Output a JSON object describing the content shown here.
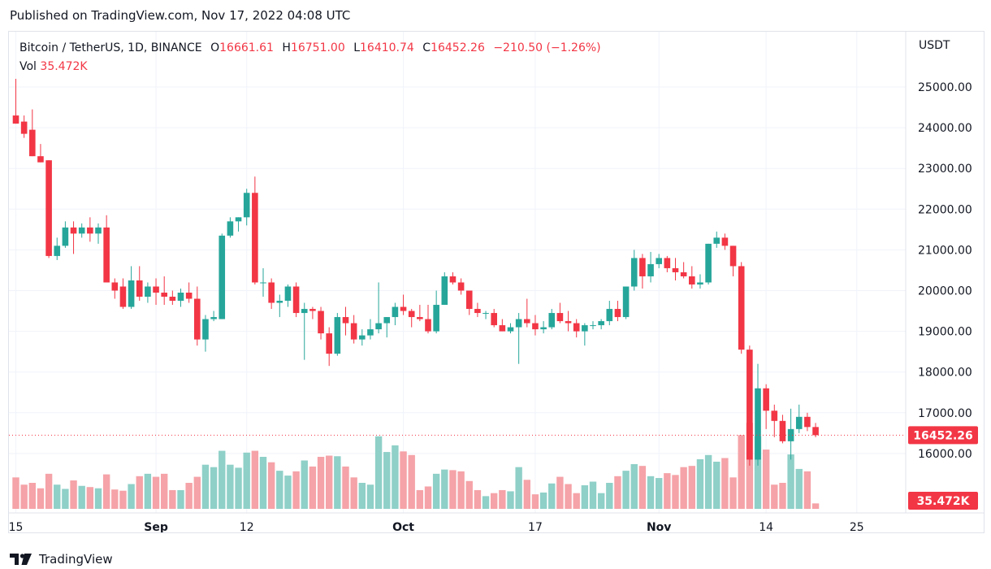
{
  "header": {
    "published": "Published on TradingView.com, Nov 17, 2022 04:08 UTC"
  },
  "legend": {
    "symbol": "Bitcoin / TetherUS, 1D, BINANCE",
    "open_label": "O",
    "open": "16661.61",
    "high_label": "H",
    "high": "16751.00",
    "low_label": "L",
    "low": "16410.74",
    "close_label": "C",
    "close": "16452.26",
    "change": "−210.50 (−1.26%)",
    "vol_label": "Vol",
    "vol": "35.472K"
  },
  "axis": {
    "unit": "USDT",
    "y_ticks": [
      "25000.00",
      "24000.00",
      "23000.00",
      "22000.00",
      "21000.00",
      "20000.00",
      "19000.00",
      "18000.00",
      "17000.00",
      "16000.00"
    ],
    "x_ticks": [
      {
        "label": "15",
        "index": 0
      },
      {
        "label": "Sep",
        "index": 17
      },
      {
        "label": "12",
        "index": 28
      },
      {
        "label": "Oct",
        "index": 47
      },
      {
        "label": "17",
        "index": 63
      },
      {
        "label": "Nov",
        "index": 78
      },
      {
        "label": "14",
        "index": 91
      },
      {
        "label": "25",
        "index": 102
      }
    ],
    "last_price_badge": "16452.26",
    "volume_badge": "35.472K"
  },
  "brand": {
    "name": "TradingView"
  },
  "colors": {
    "up": "#26a69a",
    "down": "#f23645",
    "up_vol": "#8fd0c8",
    "down_vol": "#f5a3a8",
    "grid": "#f0f3fa"
  },
  "chart_data": {
    "type": "candlestick",
    "title": "Bitcoin / TetherUS, 1D, BINANCE",
    "ylabel": "USDT",
    "ylim": [
      15400,
      25600
    ],
    "x_start": "Aug 15",
    "candles": [
      {
        "o": 24300,
        "h": 25200,
        "l": 24100,
        "c": 24100,
        "v": 0.52
      },
      {
        "o": 24150,
        "h": 24300,
        "l": 23750,
        "c": 23850,
        "v": 0.4
      },
      {
        "o": 23950,
        "h": 24450,
        "l": 23300,
        "c": 23300,
        "v": 0.43
      },
      {
        "o": 23300,
        "h": 23600,
        "l": 23150,
        "c": 23150,
        "v": 0.34
      },
      {
        "o": 23200,
        "h": 23200,
        "l": 20800,
        "c": 20850,
        "v": 0.58
      },
      {
        "o": 20850,
        "h": 21300,
        "l": 20750,
        "c": 21100,
        "v": 0.4
      },
      {
        "o": 21100,
        "h": 21700,
        "l": 21050,
        "c": 21550,
        "v": 0.33
      },
      {
        "o": 21550,
        "h": 21700,
        "l": 20900,
        "c": 21400,
        "v": 0.47
      },
      {
        "o": 21400,
        "h": 21650,
        "l": 21300,
        "c": 21550,
        "v": 0.38
      },
      {
        "o": 21550,
        "h": 21800,
        "l": 21200,
        "c": 21400,
        "v": 0.36
      },
      {
        "o": 21400,
        "h": 21650,
        "l": 21150,
        "c": 21550,
        "v": 0.34
      },
      {
        "o": 21550,
        "h": 21850,
        "l": 20200,
        "c": 20200,
        "v": 0.57
      },
      {
        "o": 20200,
        "h": 20300,
        "l": 19800,
        "c": 20000,
        "v": 0.32
      },
      {
        "o": 20100,
        "h": 20300,
        "l": 19550,
        "c": 19600,
        "v": 0.3
      },
      {
        "o": 19600,
        "h": 20600,
        "l": 19550,
        "c": 20250,
        "v": 0.41
      },
      {
        "o": 20250,
        "h": 20600,
        "l": 19750,
        "c": 19850,
        "v": 0.54
      },
      {
        "o": 19850,
        "h": 20200,
        "l": 19700,
        "c": 20100,
        "v": 0.58
      },
      {
        "o": 20100,
        "h": 20300,
        "l": 19650,
        "c": 19950,
        "v": 0.53
      },
      {
        "o": 19950,
        "h": 20350,
        "l": 19650,
        "c": 19850,
        "v": 0.58
      },
      {
        "o": 19850,
        "h": 20000,
        "l": 19650,
        "c": 19750,
        "v": 0.31
      },
      {
        "o": 19750,
        "h": 20050,
        "l": 19600,
        "c": 19950,
        "v": 0.31
      },
      {
        "o": 19950,
        "h": 20200,
        "l": 19700,
        "c": 19800,
        "v": 0.43
      },
      {
        "o": 19800,
        "h": 20100,
        "l": 18650,
        "c": 18800,
        "v": 0.53
      },
      {
        "o": 18800,
        "h": 19400,
        "l": 18500,
        "c": 19300,
        "v": 0.73
      },
      {
        "o": 19300,
        "h": 19500,
        "l": 19250,
        "c": 19350,
        "v": 0.69
      },
      {
        "o": 19300,
        "h": 21400,
        "l": 19300,
        "c": 21350,
        "v": 0.96
      },
      {
        "o": 21350,
        "h": 21800,
        "l": 21300,
        "c": 21700,
        "v": 0.73
      },
      {
        "o": 21700,
        "h": 21800,
        "l": 21450,
        "c": 21800,
        "v": 0.68
      },
      {
        "o": 21800,
        "h": 22500,
        "l": 21600,
        "c": 22400,
        "v": 0.93
      },
      {
        "o": 22400,
        "h": 22800,
        "l": 20150,
        "c": 20200,
        "v": 0.96
      },
      {
        "o": 20200,
        "h": 20550,
        "l": 19850,
        "c": 20200,
        "v": 0.86
      },
      {
        "o": 20200,
        "h": 20300,
        "l": 19550,
        "c": 19700,
        "v": 0.77
      },
      {
        "o": 19700,
        "h": 19900,
        "l": 19350,
        "c": 19750,
        "v": 0.63
      },
      {
        "o": 19750,
        "h": 20150,
        "l": 19600,
        "c": 20100,
        "v": 0.55
      },
      {
        "o": 20100,
        "h": 20200,
        "l": 19350,
        "c": 19450,
        "v": 0.62
      },
      {
        "o": 19450,
        "h": 19700,
        "l": 18300,
        "c": 19550,
        "v": 0.8
      },
      {
        "o": 19550,
        "h": 19600,
        "l": 19300,
        "c": 19500,
        "v": 0.7
      },
      {
        "o": 19500,
        "h": 19600,
        "l": 18800,
        "c": 18950,
        "v": 0.86
      },
      {
        "o": 18950,
        "h": 19100,
        "l": 18150,
        "c": 18450,
        "v": 0.88
      },
      {
        "o": 18450,
        "h": 19450,
        "l": 18400,
        "c": 19350,
        "v": 0.87
      },
      {
        "o": 19350,
        "h": 19600,
        "l": 18900,
        "c": 19200,
        "v": 0.7
      },
      {
        "o": 19200,
        "h": 19400,
        "l": 18700,
        "c": 18800,
        "v": 0.52
      },
      {
        "o": 18800,
        "h": 19050,
        "l": 18650,
        "c": 18900,
        "v": 0.43
      },
      {
        "o": 18900,
        "h": 19300,
        "l": 18800,
        "c": 19050,
        "v": 0.4
      },
      {
        "o": 19050,
        "h": 20200,
        "l": 18950,
        "c": 19200,
        "v": 1.2
      },
      {
        "o": 19200,
        "h": 19350,
        "l": 18850,
        "c": 19350,
        "v": 0.94
      },
      {
        "o": 19350,
        "h": 19700,
        "l": 19150,
        "c": 19600,
        "v": 1.05
      },
      {
        "o": 19600,
        "h": 19900,
        "l": 19400,
        "c": 19500,
        "v": 0.95
      },
      {
        "o": 19500,
        "h": 19550,
        "l": 19100,
        "c": 19350,
        "v": 0.89
      },
      {
        "o": 19350,
        "h": 19650,
        "l": 19250,
        "c": 19300,
        "v": 0.31
      },
      {
        "o": 19300,
        "h": 19650,
        "l": 18950,
        "c": 19000,
        "v": 0.37
      },
      {
        "o": 19000,
        "h": 20000,
        "l": 18950,
        "c": 19650,
        "v": 0.58
      },
      {
        "o": 19650,
        "h": 20450,
        "l": 19650,
        "c": 20350,
        "v": 0.65
      },
      {
        "o": 20350,
        "h": 20450,
        "l": 20150,
        "c": 20200,
        "v": 0.64
      },
      {
        "o": 20200,
        "h": 20300,
        "l": 19900,
        "c": 20000,
        "v": 0.62
      },
      {
        "o": 20000,
        "h": 20000,
        "l": 19400,
        "c": 19550,
        "v": 0.46
      },
      {
        "o": 19550,
        "h": 19700,
        "l": 19350,
        "c": 19450,
        "v": 0.31
      },
      {
        "o": 19450,
        "h": 19500,
        "l": 19300,
        "c": 19450,
        "v": 0.21
      },
      {
        "o": 19450,
        "h": 19550,
        "l": 19100,
        "c": 19150,
        "v": 0.26
      },
      {
        "o": 19150,
        "h": 19300,
        "l": 19000,
        "c": 19000,
        "v": 0.31
      },
      {
        "o": 19000,
        "h": 19200,
        "l": 18950,
        "c": 19100,
        "v": 0.29
      },
      {
        "o": 19100,
        "h": 19450,
        "l": 18200,
        "c": 19300,
        "v": 0.69
      },
      {
        "o": 19300,
        "h": 19800,
        "l": 19100,
        "c": 19200,
        "v": 0.48
      },
      {
        "o": 19200,
        "h": 19400,
        "l": 18900,
        "c": 19050,
        "v": 0.24
      },
      {
        "o": 19050,
        "h": 19250,
        "l": 18950,
        "c": 19100,
        "v": 0.27
      },
      {
        "o": 19100,
        "h": 19550,
        "l": 19050,
        "c": 19450,
        "v": 0.42
      },
      {
        "o": 19450,
        "h": 19700,
        "l": 19200,
        "c": 19250,
        "v": 0.53
      },
      {
        "o": 19250,
        "h": 19500,
        "l": 19000,
        "c": 19200,
        "v": 0.41
      },
      {
        "o": 19200,
        "h": 19300,
        "l": 18850,
        "c": 19000,
        "v": 0.26
      },
      {
        "o": 19000,
        "h": 19200,
        "l": 18650,
        "c": 19150,
        "v": 0.39
      },
      {
        "o": 19150,
        "h": 19250,
        "l": 19050,
        "c": 19150,
        "v": 0.45
      },
      {
        "o": 19150,
        "h": 19300,
        "l": 19050,
        "c": 19250,
        "v": 0.26
      },
      {
        "o": 19250,
        "h": 19750,
        "l": 19150,
        "c": 19550,
        "v": 0.43
      },
      {
        "o": 19550,
        "h": 19750,
        "l": 19250,
        "c": 19350,
        "v": 0.54
      },
      {
        "o": 19350,
        "h": 20100,
        "l": 19300,
        "c": 20100,
        "v": 0.63
      },
      {
        "o": 20100,
        "h": 21000,
        "l": 20000,
        "c": 20800,
        "v": 0.74
      },
      {
        "o": 20800,
        "h": 20900,
        "l": 20050,
        "c": 20350,
        "v": 0.71
      },
      {
        "o": 20350,
        "h": 20950,
        "l": 20200,
        "c": 20650,
        "v": 0.54
      },
      {
        "o": 20650,
        "h": 20900,
        "l": 20550,
        "c": 20800,
        "v": 0.51
      },
      {
        "o": 20800,
        "h": 20850,
        "l": 20450,
        "c": 20550,
        "v": 0.59
      },
      {
        "o": 20550,
        "h": 20800,
        "l": 20250,
        "c": 20450,
        "v": 0.56
      },
      {
        "o": 20450,
        "h": 20700,
        "l": 20300,
        "c": 20350,
        "v": 0.69
      },
      {
        "o": 20350,
        "h": 20600,
        "l": 20050,
        "c": 20150,
        "v": 0.71
      },
      {
        "o": 20150,
        "h": 20400,
        "l": 20050,
        "c": 20200,
        "v": 0.82
      },
      {
        "o": 20200,
        "h": 21150,
        "l": 20150,
        "c": 21150,
        "v": 0.89
      },
      {
        "o": 21150,
        "h": 21450,
        "l": 21050,
        "c": 21300,
        "v": 0.78
      },
      {
        "o": 21300,
        "h": 21400,
        "l": 21000,
        "c": 21100,
        "v": 0.84
      },
      {
        "o": 21100,
        "h": 21100,
        "l": 20350,
        "c": 20600,
        "v": 0.52
      },
      {
        "o": 20600,
        "h": 20700,
        "l": 18450,
        "c": 18550,
        "v": 1.22
      },
      {
        "o": 18550,
        "h": 18650,
        "l": 15700,
        "c": 15850,
        "v": 1.42
      },
      {
        "o": 15850,
        "h": 18200,
        "l": 15700,
        "c": 17600,
        "v": 1.2
      },
      {
        "o": 17600,
        "h": 17700,
        "l": 16600,
        "c": 17050,
        "v": 0.98
      },
      {
        "o": 17050,
        "h": 17200,
        "l": 16400,
        "c": 16800,
        "v": 0.4
      },
      {
        "o": 16800,
        "h": 16950,
        "l": 16250,
        "c": 16300,
        "v": 0.43
      },
      {
        "o": 16300,
        "h": 17100,
        "l": 15850,
        "c": 16600,
        "v": 0.9
      },
      {
        "o": 16600,
        "h": 17200,
        "l": 16500,
        "c": 16900,
        "v": 0.66
      },
      {
        "o": 16900,
        "h": 17000,
        "l": 16550,
        "c": 16650,
        "v": 0.62
      },
      {
        "o": 16650,
        "h": 16750,
        "l": 16400,
        "c": 16450,
        "v": 0.09
      }
    ]
  }
}
